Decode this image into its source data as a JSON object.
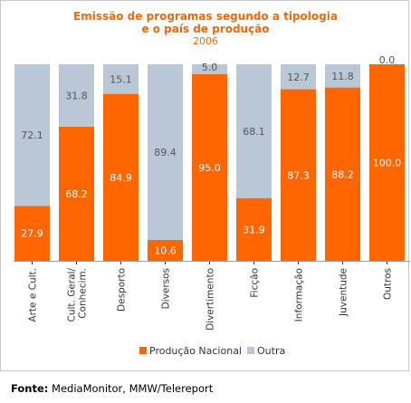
{
  "chart_data": {
    "type": "bar",
    "stacked": true,
    "title_line1": "Emissão de programas segundo a tipologia",
    "title_line2": "e o país de produção",
    "subtitle": "2006",
    "categories": [
      [
        "Arte e Cult."
      ],
      [
        "Cult. Geral/",
        "Conhecim."
      ],
      [
        "Desporto"
      ],
      [
        "Diversos"
      ],
      [
        "Divertimento"
      ],
      [
        "Ficção"
      ],
      [
        "Informação"
      ],
      [
        "Juventude"
      ],
      [
        "Outros"
      ]
    ],
    "series": [
      {
        "name": "Produção Nacional",
        "color": "#ff6600",
        "label_color": "#ffffff",
        "values": [
          27.9,
          68.2,
          84.9,
          10.6,
          95.0,
          31.9,
          87.3,
          88.2,
          100.0
        ]
      },
      {
        "name": "Outra",
        "color": "#b9c7d6",
        "label_color": "#555555",
        "values": [
          72.1,
          31.8,
          15.1,
          89.4,
          5.0,
          68.1,
          12.7,
          11.8,
          0.0
        ]
      }
    ],
    "value_labels": [
      [
        "27.9",
        "68.2",
        "84.9",
        "10.6",
        "95.0",
        "31.9",
        "87.3",
        "88.2",
        "100.0"
      ],
      [
        "72.1",
        "31.8",
        "15.1",
        "89.4",
        "5.0",
        "68.1",
        "12.7",
        "11.8",
        "0.0"
      ]
    ],
    "ylim": [
      0,
      100
    ],
    "legend_position": "bottom",
    "grid": false
  },
  "source": {
    "label": "Fonte:",
    "text": " MediaMonitor, MMW/Telereport"
  }
}
